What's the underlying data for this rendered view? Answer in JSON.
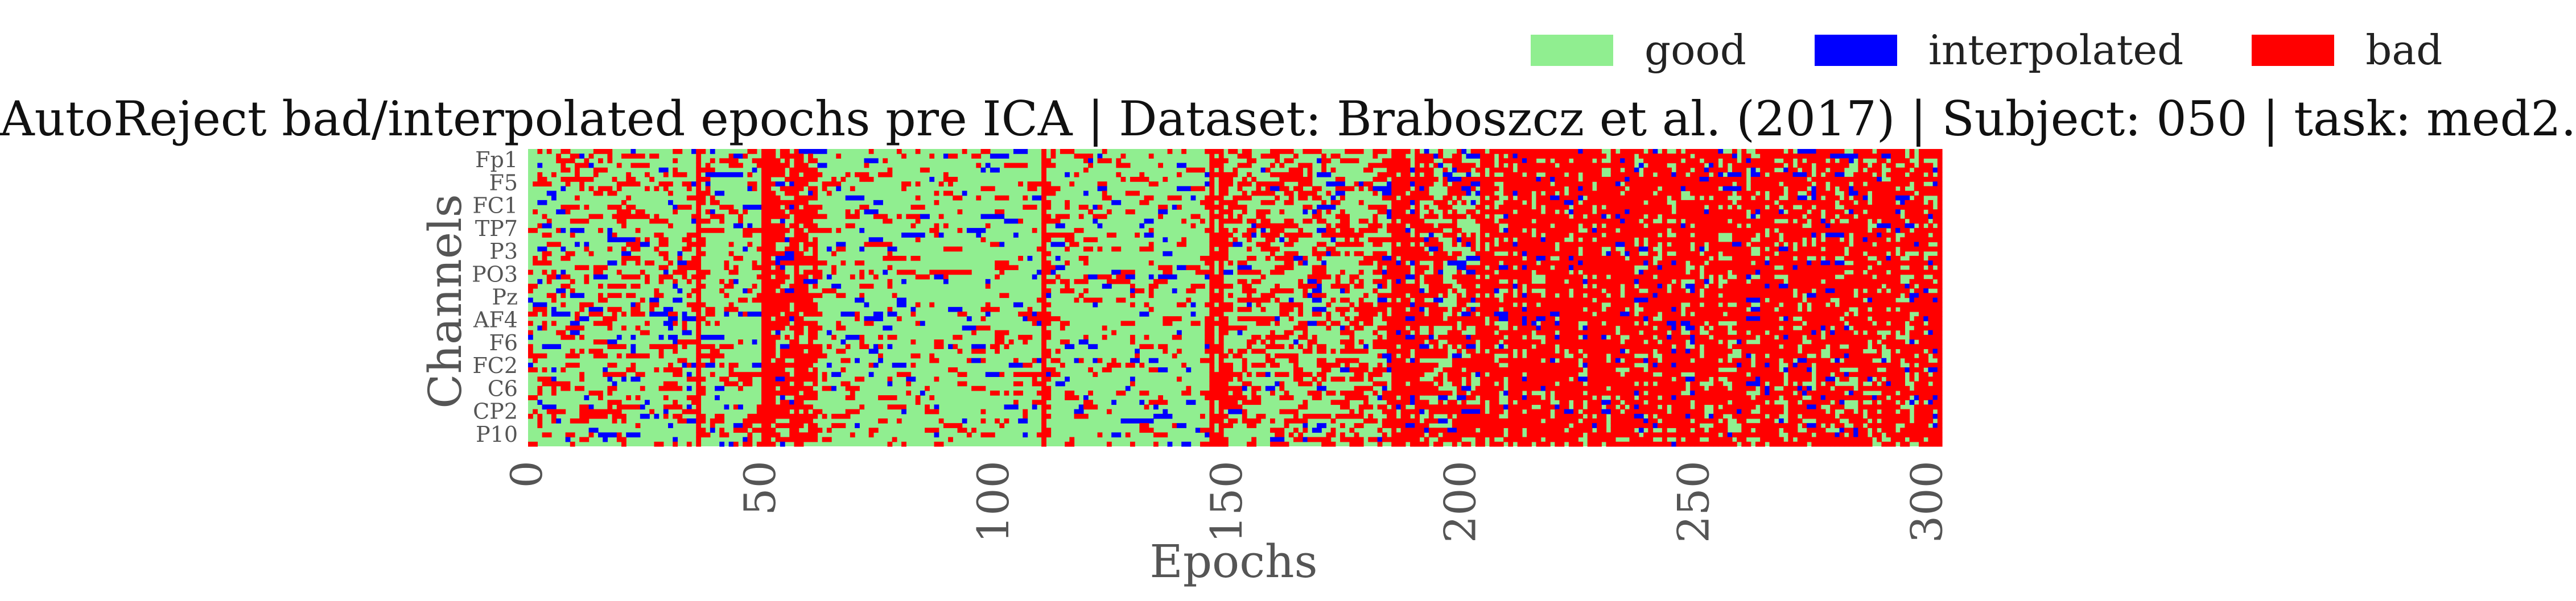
{
  "chart_data": {
    "type": "heatmap",
    "title": "AutoReject bad/interpolated epochs pre ICA | Dataset: Braboszcz et al. (2017) | Subject: 050 | task: med2.",
    "xlabel": "Epochs",
    "ylabel": "Channels",
    "xlim": [
      0,
      303
    ],
    "x_ticks": [
      "0",
      "50",
      "100",
      "150",
      "200",
      "250",
      "300"
    ],
    "y_tick_labels": [
      "Fp1",
      "F5",
      "FC1",
      "TP7",
      "P3",
      "PO3",
      "Pz",
      "AF4",
      "F6",
      "FC2",
      "C6",
      "CP2",
      "P10"
    ],
    "n_channels": 64,
    "n_epochs": 303,
    "legend": {
      "placement": "top-right",
      "entries": [
        {
          "label": "good",
          "color": "#90ee90",
          "code": 0
        },
        {
          "label": "interpolated",
          "color": "#0000ff",
          "code": 1
        },
        {
          "label": "bad",
          "color": "#ff0000",
          "code": 2
        }
      ]
    },
    "fully_bad_epochs": [
      36,
      50,
      51,
      57,
      110,
      146,
      148,
      185,
      187,
      190,
      204,
      206,
      210,
      212,
      214,
      218,
      221,
      224,
      227,
      229,
      232,
      236,
      240,
      243,
      246,
      250,
      254,
      260,
      264,
      266,
      270,
      276,
      285,
      292,
      298,
      302
    ],
    "band_density_bad": [
      {
        "epochs": [
          0,
          50
        ],
        "fraction": 0.18
      },
      {
        "epochs": [
          50,
          62
        ],
        "fraction": 0.55
      },
      {
        "epochs": [
          62,
          145
        ],
        "fraction": 0.1
      },
      {
        "epochs": [
          145,
          182
        ],
        "fraction": 0.3
      },
      {
        "epochs": [
          182,
          212
        ],
        "fraction": 0.45
      },
      {
        "epochs": [
          212,
          303
        ],
        "fraction": 0.6
      }
    ],
    "band_density_interpolated": [
      {
        "epochs": [
          0,
          60
        ],
        "fraction": 0.04
      },
      {
        "epochs": [
          60,
          182
        ],
        "fraction": 0.03
      },
      {
        "epochs": [
          182,
          303
        ],
        "fraction": 0.07
      }
    ]
  }
}
